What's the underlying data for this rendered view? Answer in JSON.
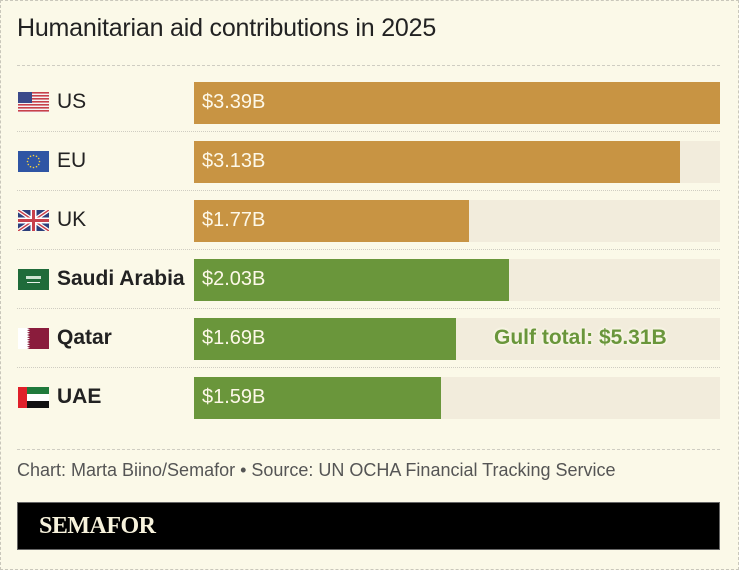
{
  "chart_data": {
    "type": "bar",
    "orientation": "horizontal",
    "title": "Humanitarian aid contributions in 2025",
    "categories": [
      "US",
      "EU",
      "UK",
      "Saudi Arabia",
      "Qatar",
      "UAE"
    ],
    "values": [
      3.39,
      3.13,
      1.77,
      2.03,
      1.69,
      1.59
    ],
    "value_labels": [
      "$3.39B",
      "$3.13B",
      "$1.77B",
      "$2.03B",
      "$1.69B",
      "$1.59B"
    ],
    "groups": [
      "western",
      "western",
      "western",
      "gulf",
      "gulf",
      "gulf"
    ],
    "group_colors": {
      "western": "#c89443",
      "gulf": "#6a963b"
    },
    "track_color": "#f2ecdc",
    "xlim": [
      0,
      3.39
    ],
    "unit": "billion USD",
    "annotation": "Gulf total: $5.31B",
    "xlabel": "",
    "ylabel": "",
    "grid": false
  },
  "rows": [
    {
      "label": "US",
      "bold": false,
      "flag": "us-flag-icon"
    },
    {
      "label": "EU",
      "bold": false,
      "flag": "eu-flag-icon"
    },
    {
      "label": "UK",
      "bold": false,
      "flag": "uk-flag-icon"
    },
    {
      "label": "Saudi Arabia",
      "bold": true,
      "flag": "saudi-flag-icon"
    },
    {
      "label": "Qatar",
      "bold": true,
      "flag": "qatar-flag-icon"
    },
    {
      "label": "UAE",
      "bold": true,
      "flag": "uae-flag-icon"
    }
  ],
  "footer": "Chart: Marta Biino/Semafor • Source: UN OCHA Financial Tracking Service",
  "brand": "SEMAFOR"
}
